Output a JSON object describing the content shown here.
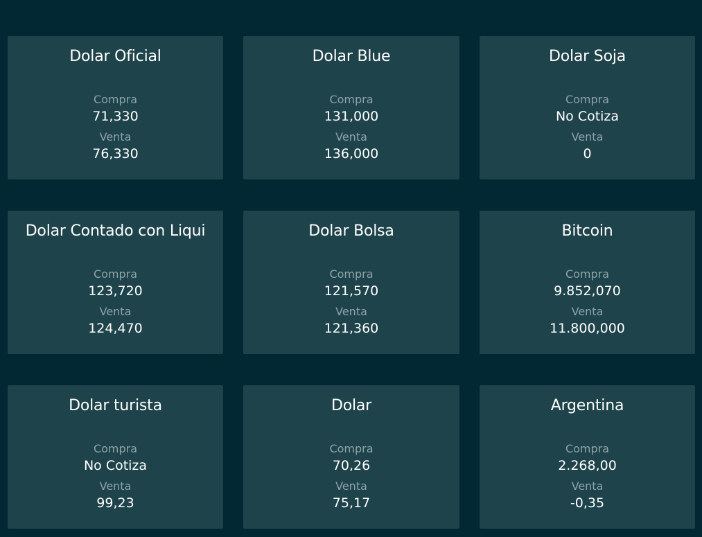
{
  "labels": {
    "buy": "Compra",
    "sell": "Venta"
  },
  "cards": [
    {
      "title": "Dolar Oficial",
      "buy": "71,330",
      "sell": "76,330"
    },
    {
      "title": "Dolar Blue",
      "buy": "131,000",
      "sell": "136,000"
    },
    {
      "title": "Dolar Soja",
      "buy": "No Cotiza",
      "sell": "0"
    },
    {
      "title": "Dolar Contado con Liqui",
      "buy": "123,720",
      "sell": "124,470"
    },
    {
      "title": "Dolar Bolsa",
      "buy": "121,570",
      "sell": "121,360"
    },
    {
      "title": "Bitcoin",
      "buy": "9.852,070",
      "sell": "11.800,000"
    },
    {
      "title": "Dolar turista",
      "buy": "No Cotiza",
      "sell": "99,23"
    },
    {
      "title": "Dolar",
      "buy": "70,26",
      "sell": "75,17"
    },
    {
      "title": "Argentina",
      "buy": "2.268,00",
      "sell": "-0,35"
    }
  ]
}
